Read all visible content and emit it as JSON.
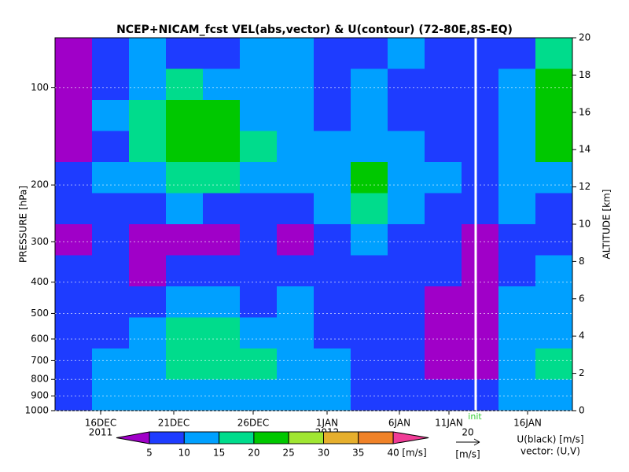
{
  "chart_data": {
    "type": "heatmap",
    "title": "NCEP+NICAM_fcst VEL(abs,vector) & U(contour)   (72-80E,8S-EQ)",
    "y_label": "PRESSURE [hPa]",
    "y2_label": "ALTITUDE [km]",
    "categories": [
      "16DEC",
      "21DEC",
      "26DEC",
      "1JAN",
      "6JAN",
      "11JAN",
      "16JAN"
    ],
    "year_labels": [
      "2011",
      "2012"
    ],
    "annotation": "init",
    "ylim": [
      1000,
      70
    ],
    "ylog": true,
    "yticks": [
      100,
      200,
      300,
      400,
      500,
      600,
      700,
      800,
      900,
      1000
    ],
    "y2lim": [
      0,
      20
    ],
    "y2ticks": [
      0,
      2,
      4,
      6,
      8,
      10,
      12,
      14,
      16,
      18,
      20
    ],
    "field": [
      [
        3,
        8,
        12,
        7,
        8,
        10,
        12,
        9,
        8,
        11,
        8,
        6,
        9,
        16
      ],
      [
        3,
        9,
        12,
        16,
        12,
        10,
        10,
        8,
        12,
        8,
        9,
        7,
        10,
        22
      ],
      [
        4,
        10,
        16,
        22,
        20,
        14,
        10,
        8,
        10,
        9,
        9,
        8,
        12,
        24
      ],
      [
        3,
        9,
        17,
        24,
        22,
        18,
        12,
        10,
        13,
        10,
        8,
        9,
        14,
        20
      ],
      [
        6,
        10,
        14,
        17,
        15,
        12,
        10,
        14,
        20,
        12,
        10,
        9,
        12,
        14
      ],
      [
        8,
        9,
        8,
        10,
        9,
        7,
        9,
        12,
        18,
        12,
        9,
        8,
        10,
        9
      ],
      [
        4,
        7,
        3,
        3,
        4,
        6,
        3,
        7,
        10,
        9,
        6,
        3,
        7,
        8
      ],
      [
        6,
        7,
        4,
        6,
        7,
        8,
        8,
        7,
        8,
        8,
        5,
        2,
        8,
        10
      ],
      [
        7,
        8,
        9,
        11,
        12,
        9,
        10,
        6,
        7,
        7,
        4,
        3,
        10,
        12
      ],
      [
        6,
        9,
        12,
        16,
        17,
        14,
        12,
        8,
        5,
        6,
        3,
        3,
        12,
        14
      ],
      [
        7,
        10,
        14,
        17,
        17,
        16,
        14,
        10,
        6,
        5,
        4,
        4,
        12,
        16
      ],
      [
        8,
        10,
        12,
        14,
        14,
        13,
        12,
        11,
        8,
        7,
        5,
        5,
        10,
        13
      ]
    ],
    "colorbar": {
      "levels": [
        5,
        10,
        15,
        20,
        25,
        30,
        35,
        40
      ],
      "colors": [
        "#a000c8",
        "#1e3cff",
        "#00a0ff",
        "#00dc8c",
        "#00c800",
        "#a0e632",
        "#e6af2d",
        "#f08228",
        "#f03c96"
      ],
      "unit": "[m/s]"
    },
    "vector_key": {
      "value": 20,
      "unit": "[m/s]"
    },
    "legend_lines": [
      "U(black) [m/s]",
      "vector: (U,V)"
    ]
  }
}
